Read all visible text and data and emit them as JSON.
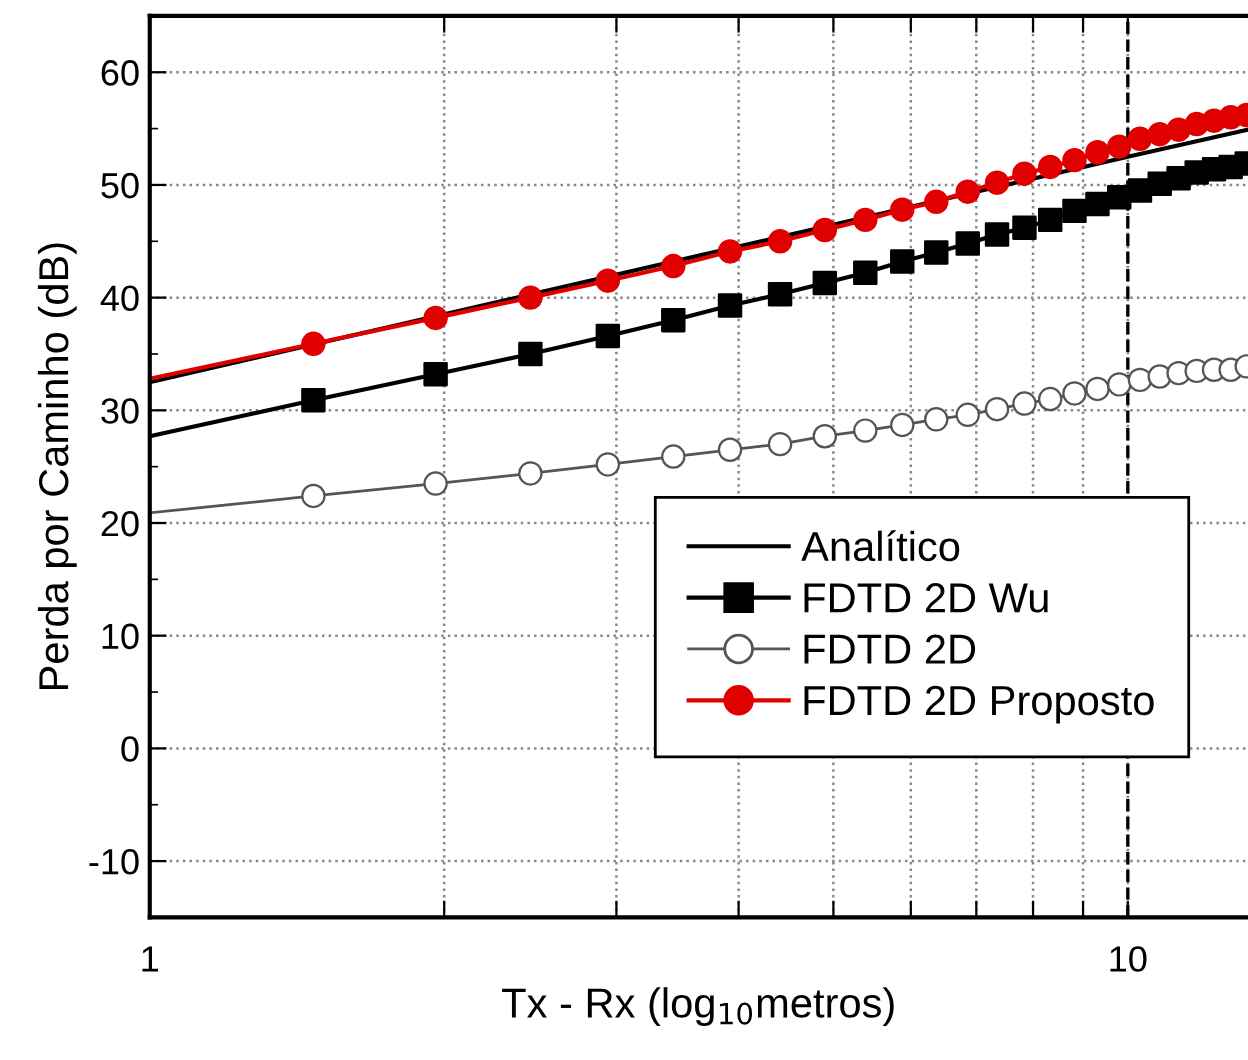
{
  "chart_data": {
    "type": "line",
    "xlabel": "Tx - Rx (log$_{10}$metros)",
    "ylabel": "Perda por Caminho (dB)",
    "log": "x",
    "xlim": [
      1,
      13.27
    ],
    "ylim": [
      -15,
      65
    ],
    "xticks": [
      1,
      {
        "value": 2,
        "label": null
      },
      {
        "value": 3,
        "label": null
      },
      {
        "value": 4,
        "label": null
      },
      {
        "value": 5,
        "label": null
      },
      {
        "value": 6,
        "label": null
      },
      {
        "value": 7,
        "label": null
      },
      {
        "value": 8,
        "label": null
      },
      {
        "value": 9,
        "label": null
      },
      10
    ],
    "yticks": [
      -10,
      0,
      10,
      20,
      30,
      40,
      50,
      60
    ],
    "grid": true,
    "legend": "bottom right",
    "line_style": "solid",
    "ref_lines": [
      {
        "axis": "x",
        "value": 10,
        "label": null,
        "color": "#000000",
        "line_style": "dashed"
      }
    ],
    "series": [
      {
        "name": "Analítico",
        "color": "#000000",
        "marker": "none",
        "x": [
          1,
          10,
          13.27
        ],
        "values": [
          32.5,
          52.5,
          54.9
        ]
      },
      {
        "name": "FDTD 2D Wu",
        "color": "#000000",
        "marker": "square",
        "x": [
          1,
          1.47,
          1.96,
          2.45,
          2.94,
          3.43,
          3.92,
          4.41,
          4.9,
          5.39,
          5.88,
          6.37,
          6.86,
          7.35,
          7.84,
          8.33,
          8.82,
          9.31,
          9.8,
          10.29,
          10.78,
          11.27,
          11.76,
          12.25,
          12.74,
          13.23
        ],
        "values": [
          27.7,
          30.9,
          33.2,
          35.0,
          36.6,
          38.0,
          39.3,
          40.3,
          41.3,
          42.2,
          43.2,
          44.0,
          44.8,
          45.6,
          46.2,
          46.9,
          47.7,
          48.3,
          48.9,
          49.5,
          50.1,
          50.6,
          51.1,
          51.4,
          51.6,
          51.9
        ]
      },
      {
        "name": "FDTD 2D",
        "color": "#555555",
        "marker": "circle",
        "colors": [
          "#ffffff",
          "#ffffff",
          "#ffffff",
          "#ffffff",
          "#ffffff",
          "#ffffff",
          "#ffffff",
          "#ffffff",
          "#ffffff",
          "#ffffff",
          "#ffffff",
          "#ffffff",
          "#ffffff",
          "#ffffff",
          "#ffffff",
          "#ffffff",
          "#ffffff",
          "#ffffff",
          "#ffffff",
          "#ffffff",
          "#ffffff",
          "#ffffff",
          "#ffffff",
          "#ffffff",
          "#ffffff",
          "#ffffff"
        ],
        "x": [
          1,
          1.47,
          1.96,
          2.45,
          2.94,
          3.43,
          3.92,
          4.41,
          4.9,
          5.39,
          5.88,
          6.37,
          6.86,
          7.35,
          7.84,
          8.33,
          8.82,
          9.31,
          9.8,
          10.29,
          10.78,
          11.27,
          11.76,
          12.25,
          12.74,
          13.23
        ],
        "values": [
          20.9,
          22.4,
          23.5,
          24.4,
          25.2,
          25.9,
          26.5,
          27.0,
          27.7,
          28.2,
          28.7,
          29.2,
          29.6,
          30.1,
          30.6,
          31.0,
          31.5,
          31.9,
          32.3,
          32.7,
          33.0,
          33.3,
          33.5,
          33.6,
          33.6,
          33.9
        ]
      },
      {
        "name": "FDTD 2D Proposto",
        "color": "#e00000",
        "marker": "circle",
        "x": [
          1,
          1.47,
          1.96,
          2.45,
          2.94,
          3.43,
          3.92,
          4.41,
          4.9,
          5.39,
          5.88,
          6.37,
          6.86,
          7.35,
          7.84,
          8.33,
          8.82,
          9.31,
          9.8,
          10.29,
          10.78,
          11.27,
          11.76,
          12.25,
          12.74,
          13.23
        ],
        "values": [
          32.8,
          35.9,
          38.2,
          40.0,
          41.5,
          42.8,
          44.1,
          45.0,
          46.0,
          46.9,
          47.8,
          48.5,
          49.4,
          50.2,
          51.0,
          51.6,
          52.2,
          52.9,
          53.4,
          54.1,
          54.5,
          54.9,
          55.4,
          55.7,
          56.0,
          56.2
        ]
      }
    ]
  }
}
